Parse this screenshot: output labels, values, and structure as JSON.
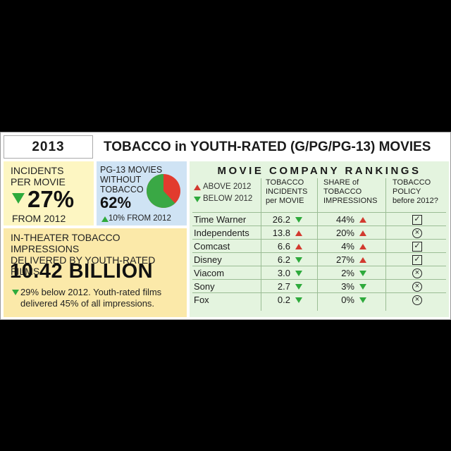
{
  "header": {
    "year": "2013",
    "title": "TOBACCO in YOUTH-RATED (G/PG/PG-13) MOVIES"
  },
  "incidents": {
    "label_line1": "INCIDENTS",
    "label_line2": "PER MOVIE",
    "value": "27%",
    "direction": "down",
    "from": "FROM 2012"
  },
  "pg13": {
    "label_line1": "PG-13 MOVIES",
    "label_line2": "WITHOUT",
    "label_line3": "TOBACCO",
    "value": "62%",
    "share_without_tobacco": 0.62,
    "change": "10% FROM 2012",
    "change_direction": "up",
    "pie_colors": {
      "without": "#3aa845",
      "with": "#e23b2e"
    }
  },
  "impressions": {
    "label_line1": "IN-THEATER TOBACCO IMPRESSIONS",
    "label_line2": "DELIVERED BY YOUTH-RATED FILMS",
    "value": "10.42 BILLION",
    "note_line1": "29% below 2012. Youth-rated films",
    "note_line2": "delivered 45% of all impressions."
  },
  "rankings": {
    "title": "MOVIE COMPANY RANKINGS",
    "legend_above": "ABOVE 2012",
    "legend_below": "BELOW 2012",
    "col_incidents": [
      "TOBACCO",
      "INCIDENTS",
      "per MOVIE"
    ],
    "col_share": [
      "SHARE of",
      "TOBACCO",
      "IMPRESSIONS"
    ],
    "col_policy": [
      "TOBACCO",
      "POLICY",
      "before 2012?"
    ],
    "rows": [
      {
        "company": "Time Warner",
        "incidents": "26.2",
        "incidents_dir": "down",
        "share": "44%",
        "share_dir": "up",
        "policy": "yes"
      },
      {
        "company": "Independents",
        "incidents": "13.8",
        "incidents_dir": "up",
        "share": "20%",
        "share_dir": "up",
        "policy": "no"
      },
      {
        "company": "Comcast",
        "incidents": "6.6",
        "incidents_dir": "up",
        "share": "4%",
        "share_dir": "up",
        "policy": "yes"
      },
      {
        "company": "Disney",
        "incidents": "6.2",
        "incidents_dir": "down",
        "share": "27%",
        "share_dir": "up",
        "policy": "yes"
      },
      {
        "company": "Viacom",
        "incidents": "3.0",
        "incidents_dir": "down",
        "share": "2%",
        "share_dir": "down",
        "policy": "no"
      },
      {
        "company": "Sony",
        "incidents": "2.7",
        "incidents_dir": "down",
        "share": "3%",
        "share_dir": "down",
        "policy": "no"
      },
      {
        "company": "Fox",
        "incidents": "0.2",
        "incidents_dir": "down",
        "share": "0%",
        "share_dir": "down",
        "policy": "no"
      }
    ]
  },
  "colors": {
    "up_arrow": "#d23a2f",
    "down_arrow": "#2eaa3c",
    "incidents_bg": "#fdf6c2",
    "pg13_bg": "#cfe3f4",
    "impressions_bg": "#fbe9a9",
    "rankings_bg": "#e4f4df"
  }
}
